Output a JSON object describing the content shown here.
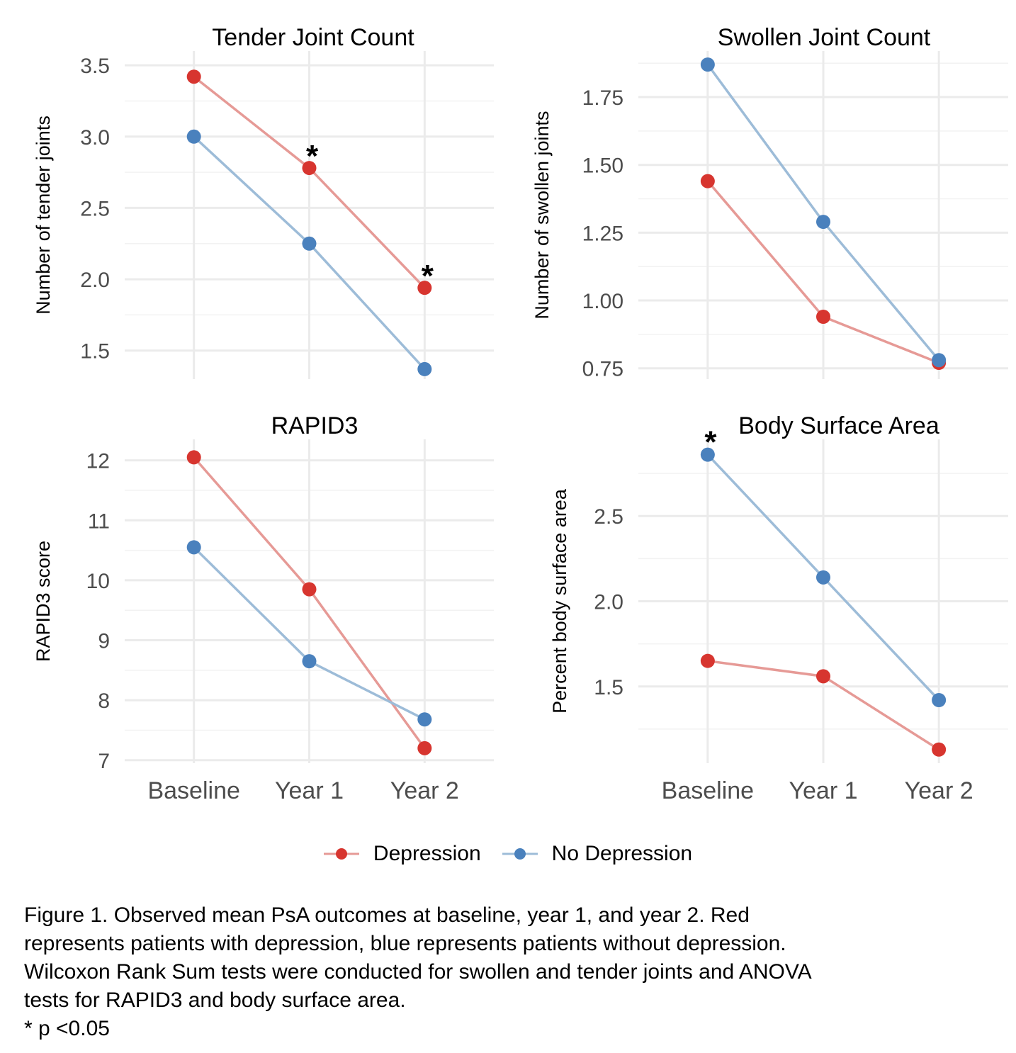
{
  "chart_data": [
    {
      "type": "line",
      "title": "Tender Joint Count",
      "ylabel": "Number of tender joints",
      "categories": [
        "Baseline",
        "Year 1",
        "Year 2"
      ],
      "ylim": [
        1.3,
        3.6
      ],
      "yticks": [
        1.5,
        2.0,
        2.5,
        3.0,
        3.5
      ],
      "ytick_labels": [
        "1.5",
        "2.0",
        "2.5",
        "3.0",
        "3.5"
      ],
      "show_x_ticks": false,
      "series": [
        {
          "name": "Depression",
          "values": [
            3.42,
            2.78,
            1.94
          ]
        },
        {
          "name": "No Depression",
          "values": [
            3.0,
            2.25,
            1.37
          ]
        }
      ],
      "annotations": [
        {
          "category": "Year 1",
          "y": 2.93,
          "text": "*"
        },
        {
          "category": "Year 2",
          "y": 2.09,
          "text": "*"
        }
      ]
    },
    {
      "type": "line",
      "title": "Swollen Joint Count",
      "ylabel": "Number of swollen joints",
      "categories": [
        "Baseline",
        "Year 1",
        "Year 2"
      ],
      "ylim": [
        0.71,
        1.92
      ],
      "yticks": [
        0.75,
        1.0,
        1.25,
        1.5,
        1.75
      ],
      "ytick_labels": [
        "0.75",
        "1.00",
        "1.25",
        "1.50",
        "1.75"
      ],
      "show_x_ticks": false,
      "series": [
        {
          "name": "Depression",
          "values": [
            1.44,
            0.94,
            0.77
          ]
        },
        {
          "name": "No Depression",
          "values": [
            1.87,
            1.29,
            0.78
          ]
        }
      ],
      "annotations": []
    },
    {
      "type": "line",
      "title": "RAPID3",
      "ylabel": "RAPID3 score",
      "categories": [
        "Baseline",
        "Year 1",
        "Year 2"
      ],
      "ylim": [
        6.95,
        12.35
      ],
      "yticks": [
        7,
        8,
        9,
        10,
        11,
        12
      ],
      "ytick_labels": [
        "7",
        "8",
        "9",
        "10",
        "11",
        "12"
      ],
      "show_x_ticks": true,
      "series": [
        {
          "name": "Depression",
          "values": [
            12.05,
            9.85,
            7.2
          ]
        },
        {
          "name": "No Depression",
          "values": [
            10.55,
            8.65,
            7.68
          ]
        }
      ],
      "annotations": []
    },
    {
      "type": "line",
      "title": "Body Surface Area",
      "ylabel": "Percent body surface area",
      "categories": [
        "Baseline",
        "Year 1",
        "Year 2"
      ],
      "ylim": [
        1.05,
        2.95
      ],
      "yticks": [
        1.5,
        2.0,
        2.5
      ],
      "ytick_labels": [
        "1.5",
        "2.0",
        "2.5"
      ],
      "show_x_ticks": true,
      "series": [
        {
          "name": "Depression",
          "values": [
            1.65,
            1.56,
            1.13
          ]
        },
        {
          "name": "No Depression",
          "values": [
            2.86,
            2.14,
            1.42
          ]
        }
      ],
      "annotations": [
        {
          "category": "Baseline",
          "y": 2.99,
          "text": "*"
        }
      ]
    }
  ],
  "colors": {
    "Depression": {
      "line": "#e69a96",
      "point": "#d7352f"
    },
    "No Depression": {
      "line": "#9dbcd8",
      "point": "#4a81bd"
    },
    "grid_major": "#ebebeb",
    "grid_minor": "#f2f2f2"
  },
  "legend": {
    "position": "bottom",
    "items": [
      {
        "name": "Depression",
        "label": "Depression"
      },
      {
        "name": "No Depression",
        "label": "No Depression"
      }
    ]
  },
  "caption": {
    "line1": "Figure 1.  Observed mean PsA outcomes at baseline, year 1, and year 2.  Red",
    "line2": "represents patients with depression, blue represents patients without depression.",
    "line3": "Wilcoxon Rank Sum tests were conducted for swollen and tender joints and ANOVA",
    "line4": "tests for RAPID3 and body surface area.",
    "line5": "* p <0.05"
  }
}
